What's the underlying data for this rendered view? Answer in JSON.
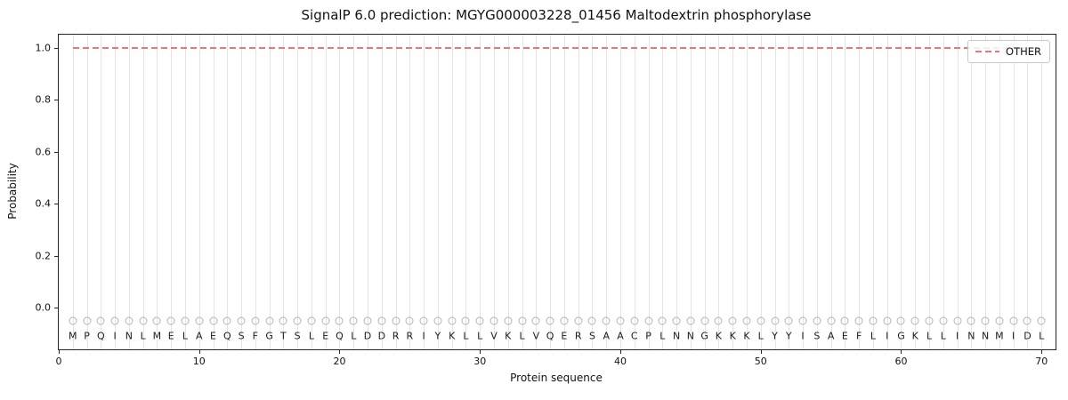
{
  "chart_data": {
    "type": "line",
    "title": "SignalP 6.0 prediction: MGYG000003228_01456 Maltodextrin phosphorylase",
    "xlabel": "Protein sequence",
    "ylabel": "Probability",
    "xlim": [
      0,
      71
    ],
    "ylim": [
      -0.16,
      1.05
    ],
    "yticks": [
      "0.0",
      "0.2",
      "0.4",
      "0.6",
      "0.8",
      "1.0"
    ],
    "xticks": [
      0,
      10,
      20,
      30,
      40,
      50,
      60,
      70
    ],
    "grid": "vertical-per-residue",
    "legend": {
      "position": "upper right",
      "entries": [
        {
          "label": "OTHER",
          "style": "dashed",
          "color": "#ec7575"
        }
      ]
    },
    "series": [
      {
        "name": "OTHER",
        "style": "dashed",
        "color": "#ec7575",
        "y_constant": 1.0,
        "x_start": 1,
        "x_end": 70
      }
    ],
    "sequence": "MPQINLMELAEQSFGTSLEQLDDRRIYKLLVKLVQERSAACPLNNGKKKLYYISAEFLIGKLLINNMIDL",
    "marker_row": {
      "symbol": "open-circle",
      "y": -0.05
    },
    "sequence_row_y": -0.108,
    "colors": {
      "line_red": "#ec7575",
      "grid": "#e4e4e4",
      "marker": "#b3b3b3",
      "spine": "#262626"
    }
  }
}
